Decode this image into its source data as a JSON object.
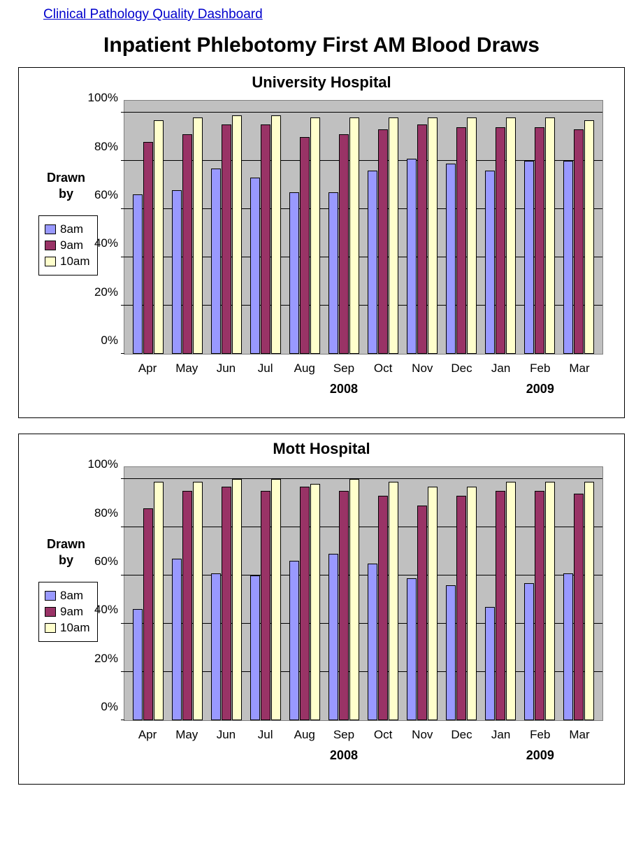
{
  "link_text": "Clinical Pathology Quality Dashboard",
  "main_title": "Inpatient Phlebotomy First AM Blood Draws",
  "colors": {
    "series_8am": "#9999ff",
    "series_9am": "#993366",
    "series_10am": "#ffffcc",
    "plot_bg": "#c0c0c0",
    "grid": "#000000"
  },
  "yaxis": {
    "min": 0,
    "max": 105,
    "ticks": [
      0,
      20,
      40,
      60,
      80,
      100
    ],
    "tick_labels": [
      "0%",
      "20%",
      "40%",
      "60%",
      "80%",
      "100%"
    ]
  },
  "xaxis": {
    "labels": [
      "Apr",
      "May",
      "Jun",
      "Jul",
      "Aug",
      "Sep",
      "Oct",
      "Nov",
      "Dec",
      "Jan",
      "Feb",
      "Mar"
    ],
    "year_markers": {
      "Sep": "2008",
      "Feb": "2009"
    }
  },
  "yaxis_title_line1": "Drawn",
  "yaxis_title_line2": "by",
  "legend": [
    {
      "label": "8am",
      "color_key": "series_8am"
    },
    {
      "label": "9am",
      "color_key": "series_9am"
    },
    {
      "label": "10am",
      "color_key": "series_10am"
    }
  ],
  "charts": [
    {
      "title": "University Hospital",
      "series": {
        "8am": [
          66,
          68,
          77,
          73,
          67,
          67,
          76,
          81,
          79,
          76,
          80,
          80
        ],
        "9am": [
          88,
          91,
          95,
          95,
          90,
          91,
          93,
          95,
          94,
          94,
          94,
          93
        ],
        "10am": [
          97,
          98,
          99,
          99,
          98,
          98,
          98,
          98,
          98,
          98,
          98,
          97
        ]
      }
    },
    {
      "title": "Mott Hospital",
      "series": {
        "8am": [
          46,
          67,
          61,
          60,
          66,
          69,
          65,
          59,
          56,
          47,
          57,
          61
        ],
        "9am": [
          88,
          95,
          97,
          95,
          97,
          95,
          93,
          89,
          93,
          95,
          95,
          94
        ],
        "10am": [
          99,
          99,
          100,
          100,
          98,
          100,
          99,
          97,
          97,
          99,
          99,
          99
        ]
      }
    }
  ]
}
